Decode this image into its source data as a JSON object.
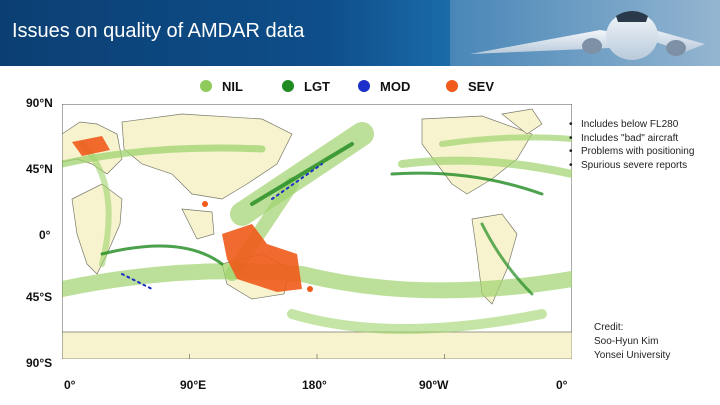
{
  "slide": {
    "title": "Issues on quality of AMDAR data"
  },
  "legend": [
    {
      "label": "NIL",
      "color": "#8fcb5c"
    },
    {
      "label": "LGT",
      "color": "#1f8a1f"
    },
    {
      "label": "MOD",
      "color": "#1c2fc8"
    },
    {
      "label": "SEV",
      "color": "#f05a1a"
    }
  ],
  "axes": {
    "y_labels": [
      "90°N",
      "45°N",
      "0°",
      "45°S",
      "90°S"
    ],
    "x_labels": [
      "0°",
      "90°E",
      "180°",
      "90°W",
      "0°"
    ]
  },
  "bullets": [
    "Includes below FL280",
    "Includes \"bad\" aircraft",
    "Problems with positioning",
    "Spurious severe reports"
  ],
  "credit": [
    "Credit:",
    "Soo-Hyun Kim",
    "Yonsei University"
  ]
}
